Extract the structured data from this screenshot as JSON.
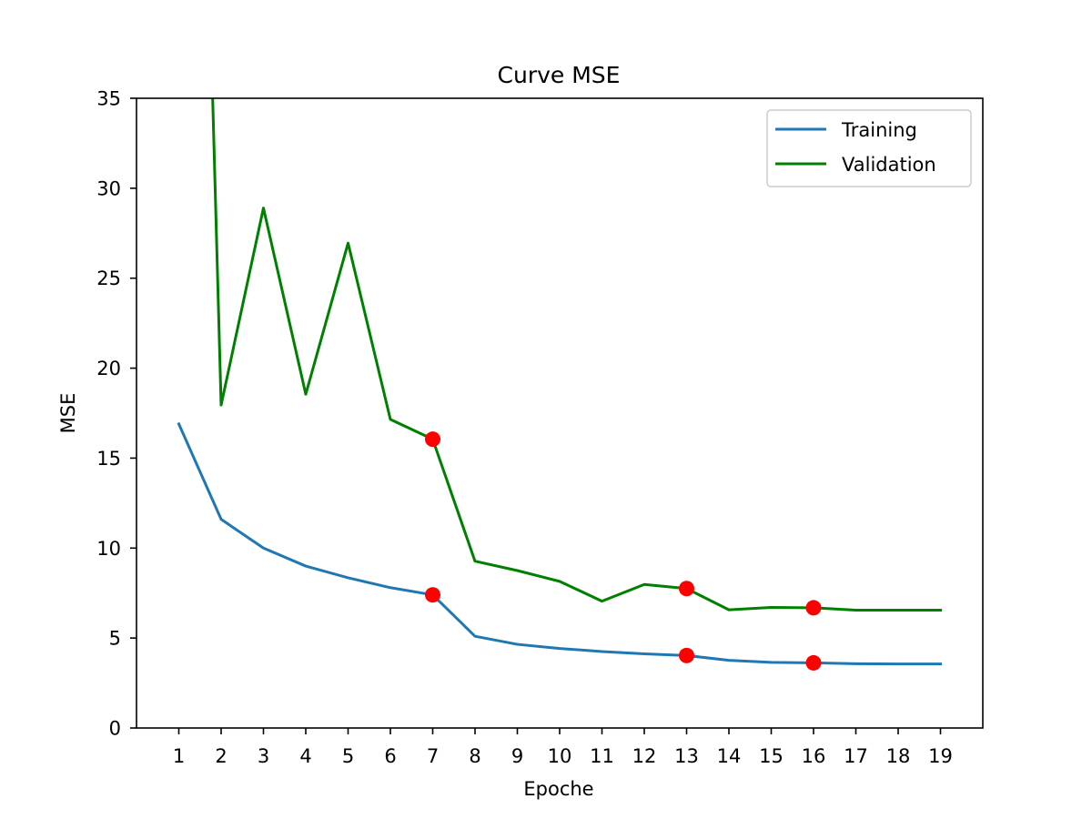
{
  "chart_data": {
    "type": "line",
    "title": "Curve MSE",
    "xlabel": "Epoche",
    "ylabel": "MSE",
    "xlim": [
      0.0,
      20.0
    ],
    "ylim": [
      0,
      35
    ],
    "x_ticks": [
      1,
      2,
      3,
      4,
      5,
      6,
      7,
      8,
      9,
      10,
      11,
      12,
      13,
      14,
      15,
      16,
      17,
      18,
      19
    ],
    "y_ticks": [
      0,
      5,
      10,
      15,
      20,
      25,
      30,
      35
    ],
    "grid": false,
    "legend_position": "top-right",
    "series": [
      {
        "name": "Training",
        "color": "#1f77b4",
        "x": [
          1,
          2,
          3,
          4,
          5,
          6,
          7,
          8,
          9,
          10,
          11,
          12,
          13,
          14,
          15,
          16,
          17,
          18,
          19
        ],
        "values": [
          16.9,
          11.6,
          10.0,
          9.0,
          8.35,
          7.8,
          7.4,
          5.1,
          4.65,
          4.42,
          4.25,
          4.12,
          4.03,
          3.76,
          3.65,
          3.62,
          3.57,
          3.56,
          3.56
        ]
      },
      {
        "name": "Validation",
        "color": "#008000",
        "x": [
          1.8,
          2,
          3,
          4,
          5,
          6,
          7,
          8,
          9,
          10,
          11,
          12,
          13,
          14,
          15,
          16,
          17,
          18,
          19
        ],
        "values": [
          35.0,
          17.95,
          28.9,
          18.55,
          26.95,
          17.15,
          16.05,
          9.27,
          8.75,
          8.15,
          7.05,
          7.98,
          7.75,
          6.57,
          6.7,
          6.68,
          6.55,
          6.55,
          6.55
        ]
      }
    ],
    "markers": {
      "color": "#ff0000",
      "points": [
        {
          "x": 7,
          "y": 16.05
        },
        {
          "x": 7,
          "y": 7.4
        },
        {
          "x": 13,
          "y": 7.75
        },
        {
          "x": 13,
          "y": 4.03
        },
        {
          "x": 16,
          "y": 6.68
        },
        {
          "x": 16,
          "y": 3.62
        }
      ]
    }
  }
}
